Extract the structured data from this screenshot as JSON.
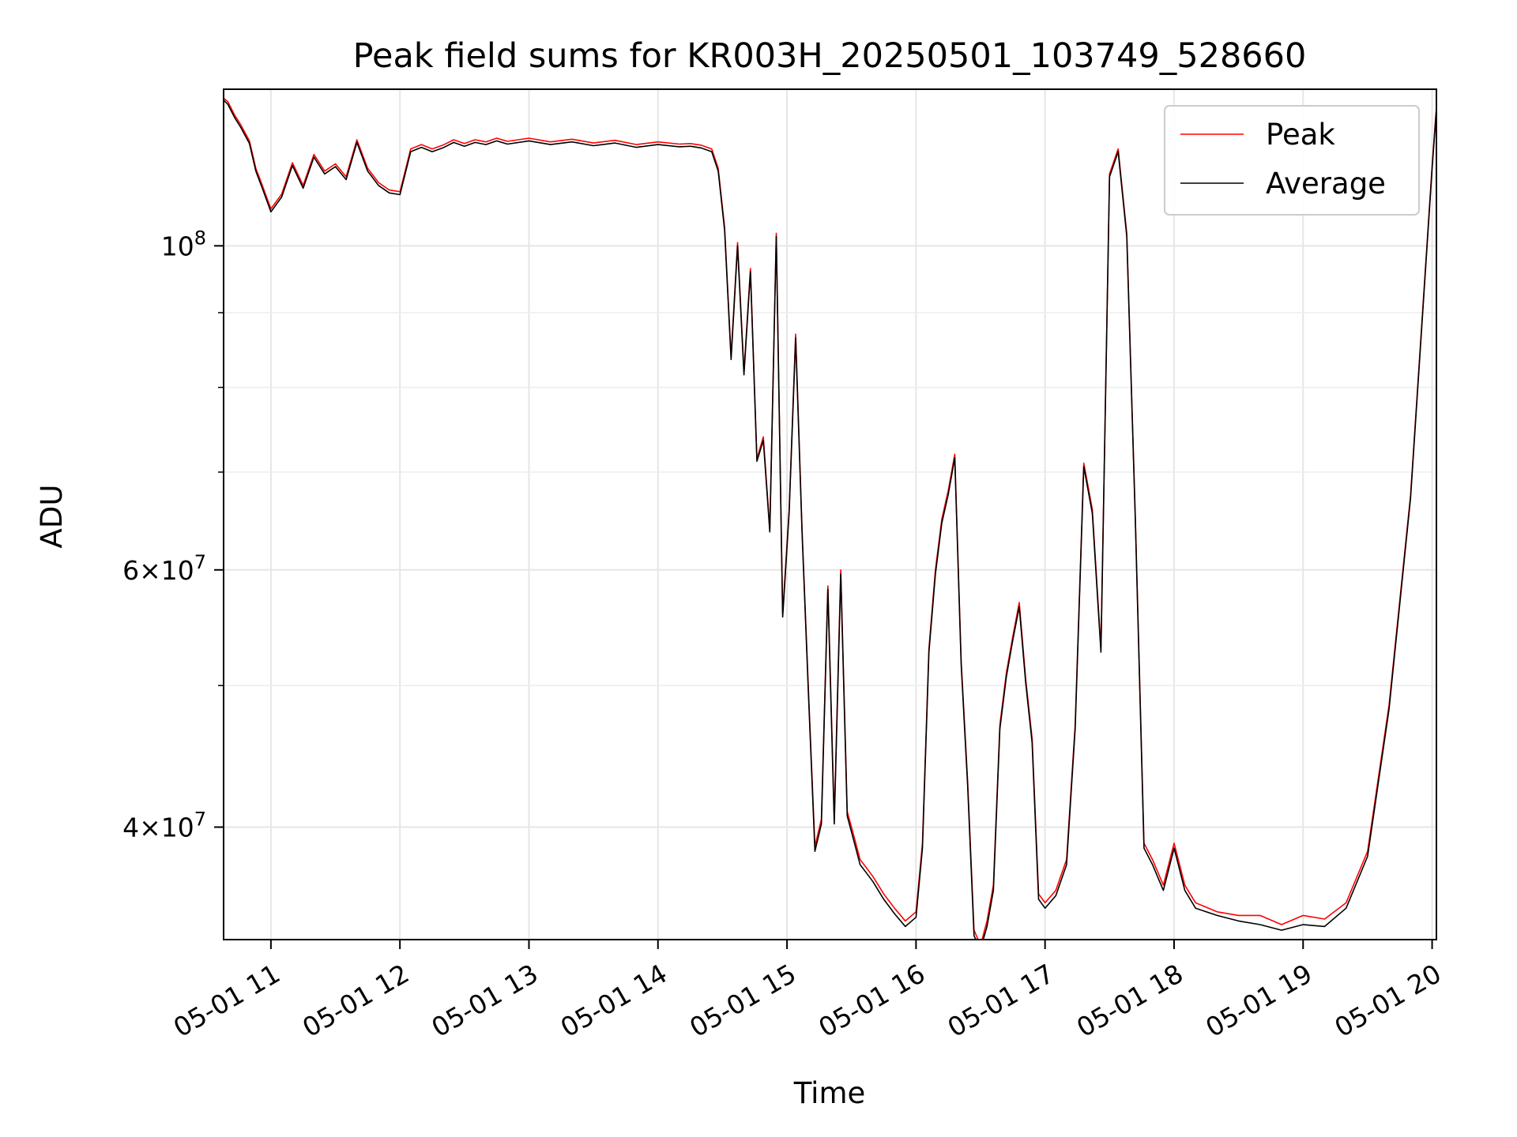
{
  "chart_data": {
    "type": "line",
    "title": "Peak field sums for KR003H_20250501_103749_528660",
    "xlabel": "Time",
    "ylabel": "ADU",
    "y_scale": "log",
    "xlim": [
      "05-01 10:38",
      "05-01 20:02"
    ],
    "ylim": [
      33500000,
      128000000
    ],
    "grid": true,
    "legend_position": "top-right",
    "x_ticks": [
      "05-01 11",
      "05-01 12",
      "05-01 13",
      "05-01 14",
      "05-01 15",
      "05-01 16",
      "05-01 17",
      "05-01 18",
      "05-01 19",
      "05-01 20"
    ],
    "y_tick_labels": [
      {
        "value": 100000000,
        "mantissa": "",
        "exp": "8"
      },
      {
        "value": 60000000,
        "mantissa": "6",
        "exp": "7"
      },
      {
        "value": 40000000,
        "mantissa": "4",
        "exp": "7"
      }
    ],
    "y_minor_ticks": [
      50000000,
      70000000,
      80000000,
      90000000
    ],
    "x": [
      "05-01 10:38",
      "05-01 10:40",
      "05-01 10:43",
      "05-01 10:46",
      "05-01 10:50",
      "05-01 10:53",
      "05-01 10:56",
      "05-01 11:00",
      "05-01 11:05",
      "05-01 11:10",
      "05-01 11:15",
      "05-01 11:20",
      "05-01 11:25",
      "05-01 11:30",
      "05-01 11:35",
      "05-01 11:40",
      "05-01 11:45",
      "05-01 11:50",
      "05-01 11:55",
      "05-01 12:00",
      "05-01 12:05",
      "05-01 12:10",
      "05-01 12:15",
      "05-01 12:20",
      "05-01 12:25",
      "05-01 12:30",
      "05-01 12:35",
      "05-01 12:40",
      "05-01 12:45",
      "05-01 12:50",
      "05-01 13:00",
      "05-01 13:10",
      "05-01 13:20",
      "05-01 13:30",
      "05-01 13:40",
      "05-01 13:50",
      "05-01 14:00",
      "05-01 14:10",
      "05-01 14:15",
      "05-01 14:20",
      "05-01 14:25",
      "05-01 14:28",
      "05-01 14:31",
      "05-01 14:34",
      "05-01 14:37",
      "05-01 14:40",
      "05-01 14:43",
      "05-01 14:46",
      "05-01 14:49",
      "05-01 14:52",
      "05-01 14:55",
      "05-01 14:58",
      "05-01 15:01",
      "05-01 15:04",
      "05-01 15:07",
      "05-01 15:10",
      "05-01 15:13",
      "05-01 15:16",
      "05-01 15:19",
      "05-01 15:22",
      "05-01 15:25",
      "05-01 15:28",
      "05-01 15:31",
      "05-01 15:34",
      "05-01 15:37",
      "05-01 15:40",
      "05-01 15:45",
      "05-01 15:50",
      "05-01 15:55",
      "05-01 16:00",
      "05-01 16:03",
      "05-01 16:06",
      "05-01 16:09",
      "05-01 16:12",
      "05-01 16:15",
      "05-01 16:18",
      "05-01 16:21",
      "05-01 16:24",
      "05-01 16:27",
      "05-01 16:30",
      "05-01 16:33",
      "05-01 16:36",
      "05-01 16:39",
      "05-01 16:42",
      "05-01 16:45",
      "05-01 16:48",
      "05-01 16:51",
      "05-01 16:54",
      "05-01 16:57",
      "05-01 17:00",
      "05-01 17:05",
      "05-01 17:10",
      "05-01 17:14",
      "05-01 17:18",
      "05-01 17:22",
      "05-01 17:26",
      "05-01 17:30",
      "05-01 17:34",
      "05-01 17:38",
      "05-01 17:42",
      "05-01 17:46",
      "05-01 17:50",
      "05-01 17:55",
      "05-01 18:00",
      "05-01 18:05",
      "05-01 18:10",
      "05-01 18:20",
      "05-01 18:30",
      "05-01 18:40",
      "05-01 18:50",
      "05-01 19:00",
      "05-01 19:10",
      "05-01 19:20",
      "05-01 19:30",
      "05-01 19:40",
      "05-01 19:50",
      "05-01 20:00",
      "05-01 20:02"
    ],
    "series": [
      {
        "name": "Peak",
        "color": "#ff0000",
        "values": [
          126200000,
          125500000,
          123000000,
          121000000,
          118000000,
          113000000,
          110000000,
          106000000,
          108500000,
          114000000,
          110000000,
          115500000,
          112500000,
          113800000,
          111500000,
          118200000,
          113000000,
          110500000,
          109200000,
          108900000,
          116500000,
          117300000,
          116500000,
          117200000,
          118200000,
          117500000,
          118200000,
          117800000,
          118500000,
          117900000,
          118500000,
          117800000,
          118300000,
          117600000,
          118100000,
          117300000,
          117800000,
          117400000,
          117500000,
          117200000,
          116500000,
          113000000,
          103000000,
          84000000,
          100500000,
          82000000,
          96500000,
          71500000,
          74000000,
          64000000,
          102000000,
          56000000,
          66000000,
          87000000,
          64000000,
          49500000,
          38800000,
          40500000,
          58500000,
          40500000,
          60000000,
          41000000,
          39500000,
          38000000,
          37500000,
          37000000,
          36000000,
          35200000,
          34500000,
          35000000,
          39000000,
          53000000,
          60000000,
          65000000,
          68000000,
          72000000,
          52000000,
          43000000,
          34000000,
          33200000,
          34500000,
          36500000,
          47000000,
          51000000,
          54000000,
          57000000,
          50500000,
          46000000,
          36000000,
          35500000,
          36200000,
          38000000,
          47000000,
          71000000,
          66000000,
          53000000,
          112000000,
          116500000,
          102000000,
          65000000,
          39000000,
          38000000,
          36500000,
          39000000,
          36500000,
          35500000,
          35000000,
          34800000,
          34800000,
          34300000,
          34800000,
          34600000,
          35500000,
          38500000,
          48500000,
          67500000,
          113500000,
          124500000
        ]
      },
      {
        "name": "Average",
        "color": "#000000",
        "values": [
          125800000,
          125000000,
          122500000,
          120500000,
          117500000,
          112500000,
          109500000,
          105500000,
          108000000,
          113500000,
          109500000,
          115000000,
          112000000,
          113300000,
          111000000,
          117700000,
          112500000,
          110000000,
          108700000,
          108400000,
          116000000,
          116800000,
          116000000,
          116700000,
          117700000,
          117000000,
          117700000,
          117300000,
          118000000,
          117400000,
          118000000,
          117300000,
          117800000,
          117100000,
          117600000,
          116800000,
          117300000,
          116900000,
          117000000,
          116700000,
          116000000,
          112500000,
          102500000,
          83600000,
          100000000,
          81600000,
          96000000,
          71200000,
          73600000,
          63700000,
          101500000,
          55700000,
          65700000,
          86500000,
          63700000,
          49200000,
          38500000,
          40200000,
          58200000,
          40200000,
          59600000,
          40700000,
          39200000,
          37700000,
          37200000,
          36700000,
          35700000,
          34900000,
          34200000,
          34700000,
          38700000,
          52700000,
          59600000,
          64600000,
          67600000,
          71600000,
          51700000,
          42700000,
          33700000,
          33000000,
          34200000,
          36200000,
          46700000,
          50700000,
          53700000,
          56600000,
          50200000,
          45700000,
          35700000,
          35200000,
          35900000,
          37700000,
          46700000,
          70600000,
          65600000,
          52700000,
          111500000,
          116000000,
          101500000,
          64700000,
          38700000,
          37700000,
          36200000,
          38700000,
          36200000,
          35200000,
          34800000,
          34500000,
          34300000,
          34000000,
          34300000,
          34200000,
          35200000,
          38200000,
          48200000,
          67200000,
          113000000,
          124000000
        ]
      }
    ]
  }
}
